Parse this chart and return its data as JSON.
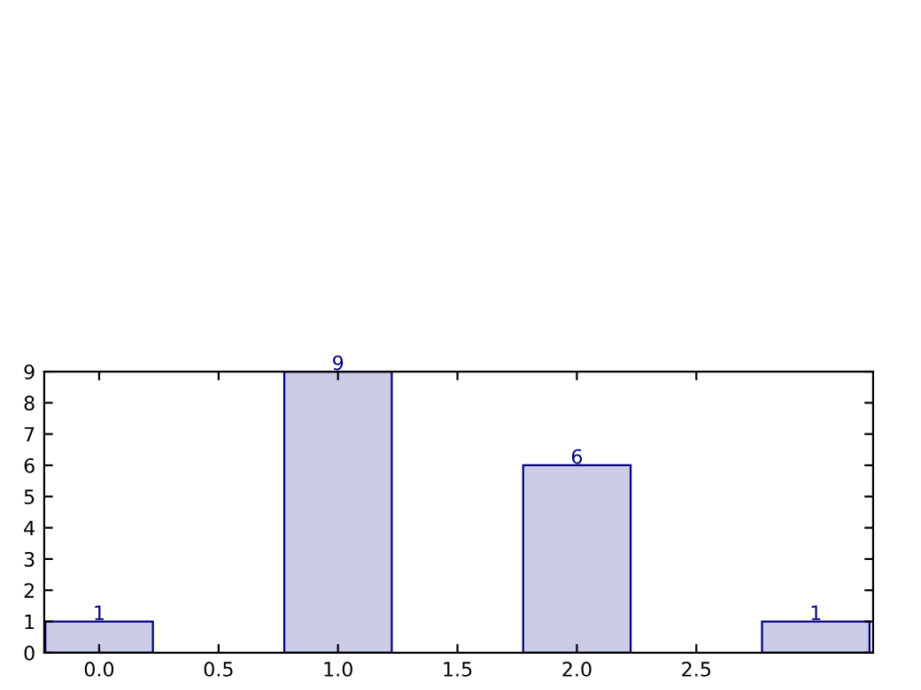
{
  "chart_data": {
    "type": "bar",
    "x": [
      0,
      1,
      2,
      3
    ],
    "values": [
      1,
      9,
      6,
      1
    ],
    "color": "#ccccE6",
    "data_labels": true,
    "xlim": [
      -0.23,
      3.24
    ],
    "xticks": [
      {
        "value": 0,
        "label": "0.0"
      },
      {
        "value": 0.5,
        "label": "0.5"
      },
      {
        "value": 1.0,
        "label": "1.0"
      },
      {
        "value": 1.5,
        "label": "1.5"
      },
      {
        "value": 2.0,
        "label": "2.0"
      },
      {
        "value": 2.5,
        "label": "2.5"
      }
    ],
    "ylim": [
      0,
      9
    ],
    "yticks": [
      0,
      1,
      2,
      3,
      4,
      5,
      6,
      7,
      8,
      9
    ],
    "grid": false,
    "legend": false
  }
}
